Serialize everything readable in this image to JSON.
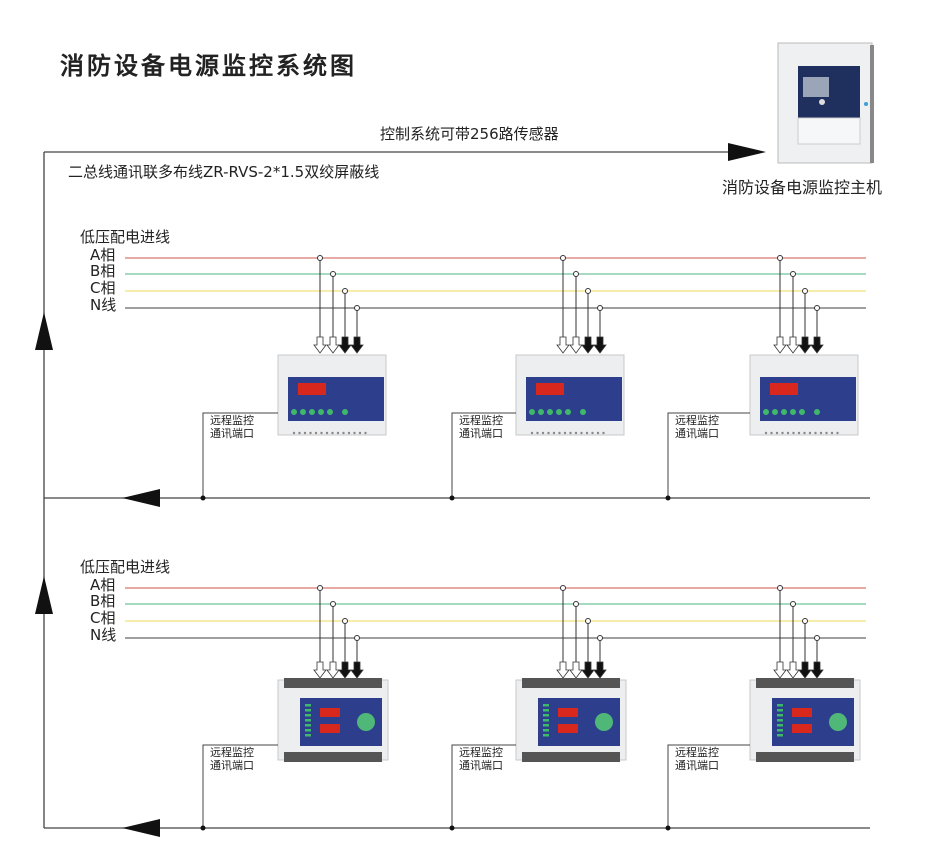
{
  "title": "消防设备电源监控系统图",
  "top_line_label": "控制系统可带256路传感器",
  "bus_cable_label": "二总线通讯联多布线ZR-RVS-2*1.5双绞屏蔽线",
  "host_label": "消防设备电源监控主机",
  "sections": [
    {
      "feeder_label": "低压配电进线",
      "phases": [
        "A相",
        "B相",
        "C相",
        "N线"
      ],
      "device_type": "rail-monitor",
      "port_label": [
        "远程监控",
        "通讯端口"
      ]
    },
    {
      "feeder_label": "低压配电进线",
      "phases": [
        "A相",
        "B相",
        "C相",
        "N线"
      ],
      "device_type": "panel-monitor",
      "port_label": [
        "远程监控",
        "通讯端口"
      ]
    }
  ],
  "colors": {
    "phase_a": "#d9776e",
    "phase_b": "#6fc29a",
    "phase_c": "#f0e27a",
    "neutral": "#666666",
    "bus_label": "#2f9e4f",
    "panel": "#2c3e8c",
    "display": "#d8281e"
  }
}
